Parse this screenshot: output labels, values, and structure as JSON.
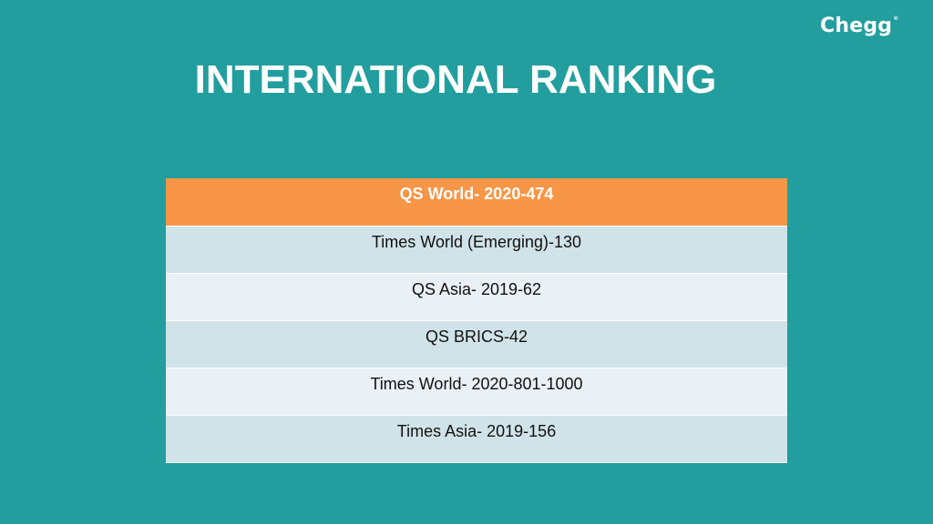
{
  "brand": {
    "logo_text": "Chegg",
    "logo_mark": "®"
  },
  "slide": {
    "title": "INTERNATIONAL RANKING"
  },
  "table": {
    "rows": [
      "QS World- 2020-474",
      "Times World (Emerging)-130",
      "QS Asia- 2019-62",
      "QS BRICS-42",
      "Times World- 2020-801-1000",
      "Times Asia- 2019-156"
    ]
  },
  "colors": {
    "background": "#229e9e",
    "header_row": "#f79646",
    "band_dark": "#d0e3e8",
    "band_light": "#e9f0f6"
  }
}
